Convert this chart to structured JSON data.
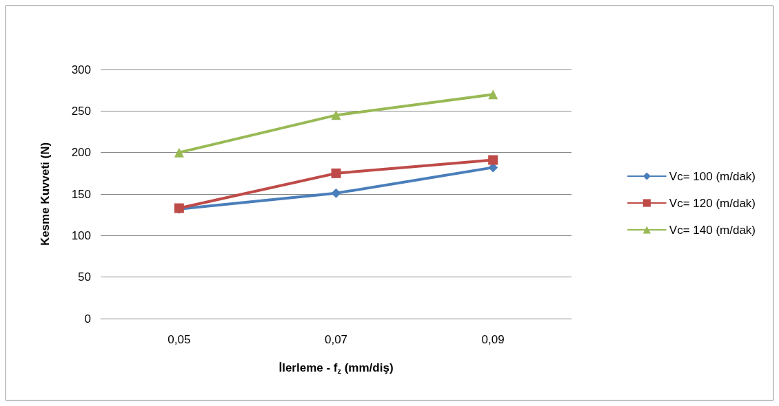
{
  "chart_data": {
    "type": "line",
    "xlabel": "İlerleme - f$_{z}$ (mm/diş)",
    "ylabel": "Kesme Kuvveti (N)",
    "categories": [
      "0,05",
      "0,07",
      "0,09"
    ],
    "series": [
      {
        "name": "Vc= 100 (m/dak)",
        "color": "#4a7ebb",
        "marker": "diamond",
        "values": [
          132,
          151,
          182
        ]
      },
      {
        "name": "Vc= 120 (m/dak)",
        "color": "#be4b48",
        "marker": "square",
        "values": [
          133,
          175,
          191
        ]
      },
      {
        "name": "Vc= 140 (m/dak)",
        "color": "#98b954",
        "marker": "triangle",
        "values": [
          200,
          245,
          270
        ]
      }
    ],
    "ylim": [
      0,
      300
    ],
    "yticks": [
      0,
      50,
      100,
      150,
      200,
      250,
      300
    ],
    "grid": "y",
    "legend": "right",
    "line_style": "solid"
  }
}
